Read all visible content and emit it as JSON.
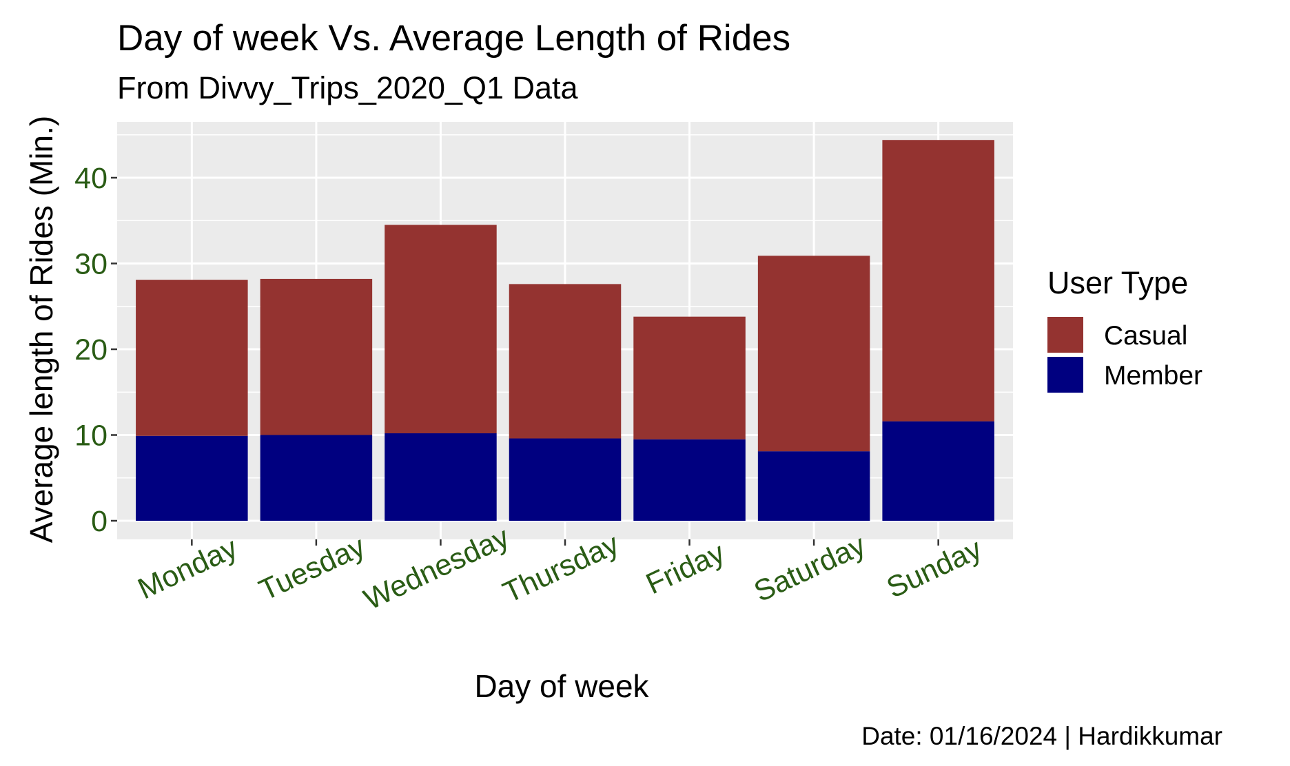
{
  "chart_data": {
    "type": "bar",
    "stacked": true,
    "title": "Day of week Vs. Average Length of Rides",
    "subtitle": "From Divvy_Trips_2020_Q1 Data",
    "xlabel": "Day of week",
    "ylabel": "Average length of Rides (Min.)",
    "caption": "Date: 01/16/2024 | Hardikkumar",
    "categories": [
      "Monday",
      "Tuesday",
      "Wednesday",
      "Thursday",
      "Friday",
      "Saturday",
      "Sunday"
    ],
    "series": [
      {
        "name": "Member",
        "color": "#000080",
        "values": [
          9.9,
          10.0,
          10.2,
          9.6,
          9.5,
          8.1,
          11.6
        ]
      },
      {
        "name": "Casual",
        "color": "#943330",
        "values": [
          18.2,
          18.2,
          24.3,
          18.0,
          14.3,
          22.8,
          32.8
        ]
      }
    ],
    "ylim": [
      0,
      46.5
    ],
    "yticks": [
      0,
      10,
      20,
      30,
      40
    ],
    "grid": true,
    "legend": {
      "title": "User Type",
      "placement": "right",
      "entries": [
        {
          "label": "Casual",
          "color": "#943330"
        },
        {
          "label": "Member",
          "color": "#000080"
        }
      ]
    }
  }
}
